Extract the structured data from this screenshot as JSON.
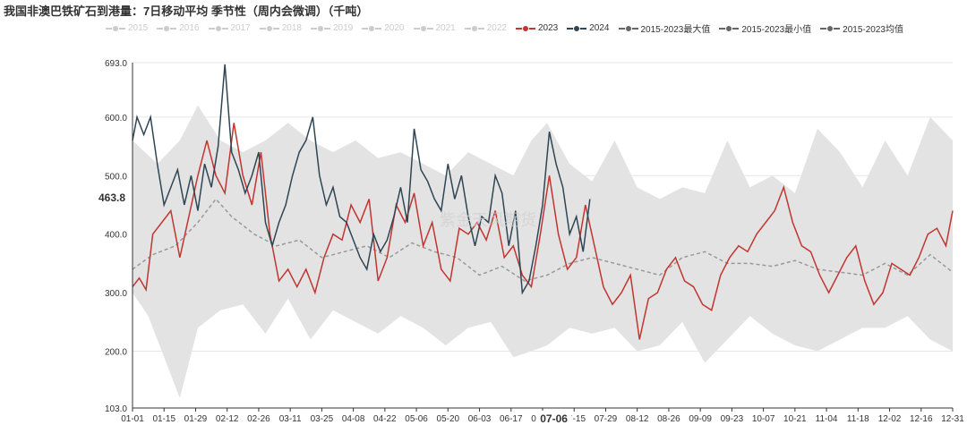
{
  "title": "我国非澳巴铁矿石到港量：7日移动平均 季节性（周内会微调）（千吨）",
  "watermark": "紫金天风期货",
  "crosshair": {
    "y_value": "463.8",
    "x_value": "07-06"
  },
  "legend": [
    {
      "label": "2015",
      "active": false,
      "color": "#cccccc"
    },
    {
      "label": "2016",
      "active": false,
      "color": "#cccccc"
    },
    {
      "label": "2017",
      "active": false,
      "color": "#cccccc"
    },
    {
      "label": "2018",
      "active": false,
      "color": "#cccccc"
    },
    {
      "label": "2019",
      "active": false,
      "color": "#cccccc"
    },
    {
      "label": "2020",
      "active": false,
      "color": "#cccccc"
    },
    {
      "label": "2021",
      "active": false,
      "color": "#cccccc"
    },
    {
      "label": "2022",
      "active": false,
      "color": "#cccccc"
    },
    {
      "label": "2023",
      "active": true,
      "color": "#c23531"
    },
    {
      "label": "2024",
      "active": true,
      "color": "#2f4554"
    },
    {
      "label": "2015-2023最大值",
      "active": true,
      "color": "#666666"
    },
    {
      "label": "2015-2023最小值",
      "active": true,
      "color": "#666666"
    },
    {
      "label": "2015-2023均值",
      "active": true,
      "color": "#666666"
    }
  ],
  "chart_data": {
    "type": "line",
    "ylim": [
      103,
      693
    ],
    "yticks": [
      "693.0",
      "600.0",
      "500.0",
      "400.0",
      "300.0",
      "200.0",
      "103.0"
    ],
    "xticks": [
      "01-01",
      "01-15",
      "01-29",
      "02-12",
      "02-26",
      "03-11",
      "03-25",
      "04-08",
      "04-22",
      "05-06",
      "05-20",
      "06-03",
      "06-17",
      "07-01",
      "07-15",
      "07-29",
      "08-12",
      "08-26",
      "09-09",
      "09-23",
      "10-07",
      "10-21",
      "11-04",
      "11-18",
      "12-02",
      "12-16",
      "12-31"
    ],
    "series": [
      {
        "name": "2015-2023最大值",
        "color": "#e0e0e0",
        "points": [
          [
            1,
            560
          ],
          [
            12,
            520
          ],
          [
            22,
            560
          ],
          [
            30,
            620
          ],
          [
            40,
            560
          ],
          [
            50,
            540
          ],
          [
            60,
            560
          ],
          [
            70,
            590
          ],
          [
            80,
            560
          ],
          [
            90,
            540
          ],
          [
            100,
            560
          ],
          [
            110,
            530
          ],
          [
            120,
            540
          ],
          [
            130,
            520
          ],
          [
            140,
            500
          ],
          [
            150,
            540
          ],
          [
            160,
            520
          ],
          [
            170,
            500
          ],
          [
            178,
            560
          ],
          [
            185,
            590
          ],
          [
            195,
            520
          ],
          [
            205,
            490
          ],
          [
            215,
            560
          ],
          [
            225,
            480
          ],
          [
            235,
            460
          ],
          [
            245,
            480
          ],
          [
            255,
            470
          ],
          [
            265,
            560
          ],
          [
            275,
            480
          ],
          [
            285,
            500
          ],
          [
            295,
            470
          ],
          [
            305,
            580
          ],
          [
            315,
            540
          ],
          [
            325,
            480
          ],
          [
            335,
            560
          ],
          [
            345,
            500
          ],
          [
            355,
            600
          ],
          [
            365,
            560
          ]
        ]
      },
      {
        "name": "2015-2023最小值",
        "color": "#e0e0e0",
        "points": [
          [
            1,
            300
          ],
          [
            8,
            260
          ],
          [
            16,
            180
          ],
          [
            22,
            120
          ],
          [
            30,
            240
          ],
          [
            40,
            270
          ],
          [
            50,
            280
          ],
          [
            60,
            230
          ],
          [
            70,
            290
          ],
          [
            80,
            220
          ],
          [
            90,
            270
          ],
          [
            100,
            250
          ],
          [
            110,
            230
          ],
          [
            120,
            260
          ],
          [
            130,
            240
          ],
          [
            140,
            210
          ],
          [
            150,
            240
          ],
          [
            160,
            250
          ],
          [
            170,
            190
          ],
          [
            178,
            200
          ],
          [
            185,
            210
          ],
          [
            195,
            240
          ],
          [
            205,
            230
          ],
          [
            215,
            240
          ],
          [
            225,
            200
          ],
          [
            235,
            210
          ],
          [
            245,
            250
          ],
          [
            255,
            180
          ],
          [
            265,
            220
          ],
          [
            275,
            260
          ],
          [
            285,
            230
          ],
          [
            295,
            210
          ],
          [
            305,
            200
          ],
          [
            315,
            220
          ],
          [
            325,
            240
          ],
          [
            335,
            240
          ],
          [
            345,
            260
          ],
          [
            355,
            220
          ],
          [
            365,
            200
          ]
        ]
      },
      {
        "name": "2015-2023均值",
        "color": "#999999",
        "points": [
          [
            1,
            340
          ],
          [
            10,
            365
          ],
          [
            20,
            380
          ],
          [
            30,
            420
          ],
          [
            38,
            460
          ],
          [
            45,
            430
          ],
          [
            55,
            400
          ],
          [
            65,
            380
          ],
          [
            75,
            390
          ],
          [
            85,
            360
          ],
          [
            95,
            370
          ],
          [
            105,
            380
          ],
          [
            115,
            360
          ],
          [
            125,
            385
          ],
          [
            135,
            370
          ],
          [
            145,
            360
          ],
          [
            155,
            330
          ],
          [
            165,
            345
          ],
          [
            175,
            320
          ],
          [
            185,
            330
          ],
          [
            195,
            350
          ],
          [
            205,
            360
          ],
          [
            215,
            350
          ],
          [
            225,
            340
          ],
          [
            235,
            330
          ],
          [
            245,
            360
          ],
          [
            255,
            370
          ],
          [
            265,
            350
          ],
          [
            275,
            350
          ],
          [
            285,
            345
          ],
          [
            295,
            355
          ],
          [
            305,
            340
          ],
          [
            315,
            335
          ],
          [
            325,
            330
          ],
          [
            335,
            350
          ],
          [
            345,
            330
          ],
          [
            355,
            365
          ],
          [
            365,
            335
          ]
        ]
      },
      {
        "name": "2023",
        "color": "#c23531",
        "points": [
          [
            1,
            310
          ],
          [
            4,
            325
          ],
          [
            7,
            305
          ],
          [
            10,
            400
          ],
          [
            14,
            420
          ],
          [
            18,
            440
          ],
          [
            22,
            360
          ],
          [
            26,
            430
          ],
          [
            30,
            500
          ],
          [
            34,
            560
          ],
          [
            38,
            500
          ],
          [
            42,
            470
          ],
          [
            46,
            590
          ],
          [
            50,
            500
          ],
          [
            54,
            450
          ],
          [
            58,
            540
          ],
          [
            62,
            400
          ],
          [
            66,
            320
          ],
          [
            70,
            340
          ],
          [
            74,
            310
          ],
          [
            78,
            340
          ],
          [
            82,
            300
          ],
          [
            86,
            360
          ],
          [
            90,
            400
          ],
          [
            94,
            390
          ],
          [
            98,
            450
          ],
          [
            102,
            420
          ],
          [
            106,
            460
          ],
          [
            110,
            320
          ],
          [
            114,
            360
          ],
          [
            118,
            450
          ],
          [
            122,
            420
          ],
          [
            126,
            470
          ],
          [
            130,
            380
          ],
          [
            134,
            420
          ],
          [
            138,
            340
          ],
          [
            142,
            320
          ],
          [
            146,
            410
          ],
          [
            150,
            400
          ],
          [
            154,
            420
          ],
          [
            158,
            390
          ],
          [
            162,
            440
          ],
          [
            166,
            360
          ],
          [
            170,
            380
          ],
          [
            174,
            330
          ],
          [
            178,
            310
          ],
          [
            182,
            400
          ],
          [
            186,
            500
          ],
          [
            190,
            400
          ],
          [
            194,
            340
          ],
          [
            198,
            360
          ],
          [
            202,
            450
          ],
          [
            206,
            380
          ],
          [
            210,
            310
          ],
          [
            214,
            280
          ],
          [
            218,
            300
          ],
          [
            222,
            330
          ],
          [
            226,
            220
          ],
          [
            230,
            290
          ],
          [
            234,
            300
          ],
          [
            238,
            340
          ],
          [
            242,
            360
          ],
          [
            246,
            320
          ],
          [
            250,
            310
          ],
          [
            254,
            280
          ],
          [
            258,
            270
          ],
          [
            262,
            330
          ],
          [
            266,
            360
          ],
          [
            270,
            380
          ],
          [
            274,
            370
          ],
          [
            278,
            400
          ],
          [
            282,
            420
          ],
          [
            286,
            440
          ],
          [
            290,
            480
          ],
          [
            294,
            420
          ],
          [
            298,
            380
          ],
          [
            302,
            370
          ],
          [
            306,
            330
          ],
          [
            310,
            300
          ],
          [
            314,
            330
          ],
          [
            318,
            360
          ],
          [
            322,
            380
          ],
          [
            326,
            320
          ],
          [
            330,
            280
          ],
          [
            334,
            300
          ],
          [
            338,
            350
          ],
          [
            342,
            340
          ],
          [
            346,
            330
          ],
          [
            350,
            360
          ],
          [
            354,
            400
          ],
          [
            358,
            410
          ],
          [
            362,
            380
          ],
          [
            365,
            440
          ]
        ]
      },
      {
        "name": "2024",
        "color": "#2f4554",
        "points": [
          [
            1,
            560
          ],
          [
            3,
            600
          ],
          [
            6,
            570
          ],
          [
            9,
            600
          ],
          [
            12,
            520
          ],
          [
            15,
            450
          ],
          [
            18,
            480
          ],
          [
            21,
            510
          ],
          [
            24,
            450
          ],
          [
            27,
            500
          ],
          [
            30,
            440
          ],
          [
            33,
            520
          ],
          [
            36,
            480
          ],
          [
            39,
            550
          ],
          [
            42,
            690
          ],
          [
            45,
            540
          ],
          [
            48,
            510
          ],
          [
            51,
            470
          ],
          [
            54,
            500
          ],
          [
            57,
            540
          ],
          [
            60,
            420
          ],
          [
            63,
            380
          ],
          [
            66,
            420
          ],
          [
            69,
            450
          ],
          [
            72,
            500
          ],
          [
            75,
            540
          ],
          [
            78,
            560
          ],
          [
            81,
            600
          ],
          [
            84,
            500
          ],
          [
            87,
            450
          ],
          [
            90,
            480
          ],
          [
            93,
            430
          ],
          [
            96,
            420
          ],
          [
            99,
            390
          ],
          [
            102,
            360
          ],
          [
            105,
            340
          ],
          [
            108,
            400
          ],
          [
            111,
            370
          ],
          [
            114,
            390
          ],
          [
            117,
            430
          ],
          [
            120,
            480
          ],
          [
            123,
            420
          ],
          [
            126,
            580
          ],
          [
            129,
            510
          ],
          [
            132,
            490
          ],
          [
            135,
            460
          ],
          [
            138,
            440
          ],
          [
            141,
            520
          ],
          [
            144,
            460
          ],
          [
            147,
            500
          ],
          [
            150,
            430
          ],
          [
            153,
            380
          ],
          [
            156,
            430
          ],
          [
            159,
            420
          ],
          [
            162,
            500
          ],
          [
            165,
            470
          ],
          [
            168,
            380
          ],
          [
            171,
            440
          ],
          [
            174,
            300
          ],
          [
            177,
            320
          ],
          [
            180,
            380
          ],
          [
            183,
            450
          ],
          [
            186,
            575
          ],
          [
            189,
            520
          ],
          [
            192,
            480
          ],
          [
            195,
            400
          ],
          [
            198,
            430
          ],
          [
            201,
            370
          ],
          [
            204,
            460
          ]
        ]
      }
    ]
  }
}
